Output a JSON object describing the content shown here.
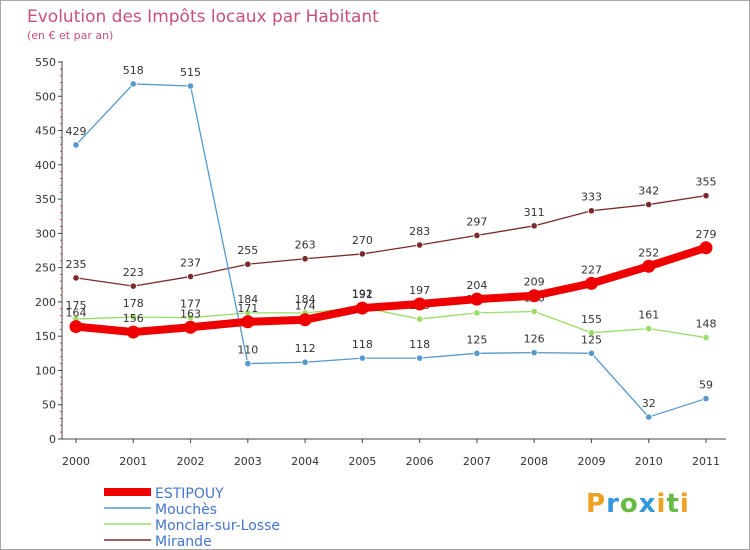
{
  "chart_data": {
    "type": "line",
    "title": "Evolution des Impôts locaux par Habitant",
    "subtitle": "(en € et par an)",
    "categories": [
      "2000",
      "2001",
      "2002",
      "2003",
      "2004",
      "2005",
      "2006",
      "2007",
      "2008",
      "2009",
      "2010",
      "2011"
    ],
    "ylim": [
      0,
      550
    ],
    "yticks": [
      0,
      50,
      100,
      150,
      200,
      250,
      300,
      350,
      400,
      450,
      500,
      550
    ],
    "grid": false,
    "legend_position": "bottom-left",
    "series": [
      {
        "name": "Mirande",
        "color": "#7a2a2a",
        "values": [
          235,
          223,
          237,
          255,
          263,
          270,
          283,
          297,
          311,
          333,
          342,
          355
        ]
      },
      {
        "name": "Monclar-sur-Losse",
        "color": "#99dd66",
        "values": [
          175,
          178,
          177,
          184,
          184,
          192,
          175,
          184,
          186,
          155,
          161,
          148
        ]
      },
      {
        "name": "Mouchès",
        "color": "#5599cc",
        "values": [
          429,
          518,
          515,
          110,
          112,
          118,
          118,
          125,
          126,
          125,
          32,
          59
        ]
      },
      {
        "name": "ESTIPOUY",
        "color": "#ee0000",
        "values": [
          164,
          156,
          163,
          171,
          174,
          191,
          197,
          204,
          209,
          227,
          252,
          279
        ]
      }
    ],
    "legend": [
      "ESTIPOUY",
      "Mouchès",
      "Monclar-sur-Losse",
      "Mirande"
    ]
  },
  "logo": {
    "letters": [
      "P",
      "r",
      "o",
      "x",
      "i",
      "t",
      "i"
    ],
    "colors": [
      "#f0a020",
      "#3399dd",
      "#66bb44",
      "#3399dd",
      "#f0a020",
      "#66bb44",
      "#f0a020"
    ]
  }
}
